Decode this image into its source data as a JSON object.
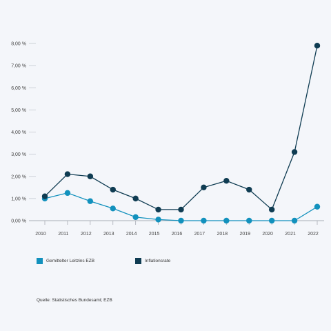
{
  "chart_data": {
    "type": "line",
    "x": [
      "2010",
      "2011",
      "2012",
      "2013",
      "2014",
      "2015",
      "2016",
      "2017",
      "2018",
      "2019",
      "2020",
      "2021",
      "2022"
    ],
    "series": [
      {
        "name": "Gemittelter Leitzins EZB",
        "color": "#1291bd",
        "values": [
          1.0,
          1.25,
          0.88,
          0.55,
          0.16,
          0.05,
          0.0,
          0.0,
          0.0,
          0.0,
          0.0,
          0.0,
          0.63
        ]
      },
      {
        "name": "Inflationsrate",
        "color": "#0f3c52",
        "values": [
          1.1,
          2.1,
          2.0,
          1.4,
          1.0,
          0.5,
          0.5,
          1.5,
          1.8,
          1.4,
          0.5,
          3.1,
          7.9
        ]
      }
    ],
    "yticks": [
      "0,00 %",
      "1,00 %",
      "2,00 %",
      "3,00 %",
      "4,00 %",
      "5,00 %",
      "6,00 %",
      "7,00 %",
      "8,00 %"
    ],
    "ylim": [
      0,
      8
    ],
    "title": "",
    "xlabel": "",
    "ylabel": "",
    "grid": false,
    "legend_position": "bottom-left"
  },
  "legend": {
    "items": [
      {
        "label": "Gemittelter Leitzins EZB",
        "color": "#1291bd"
      },
      {
        "label": "Inflationsrate",
        "color": "#0f3c52"
      }
    ]
  },
  "source": "Quelle: Statistisches Bundesamt; EZB"
}
